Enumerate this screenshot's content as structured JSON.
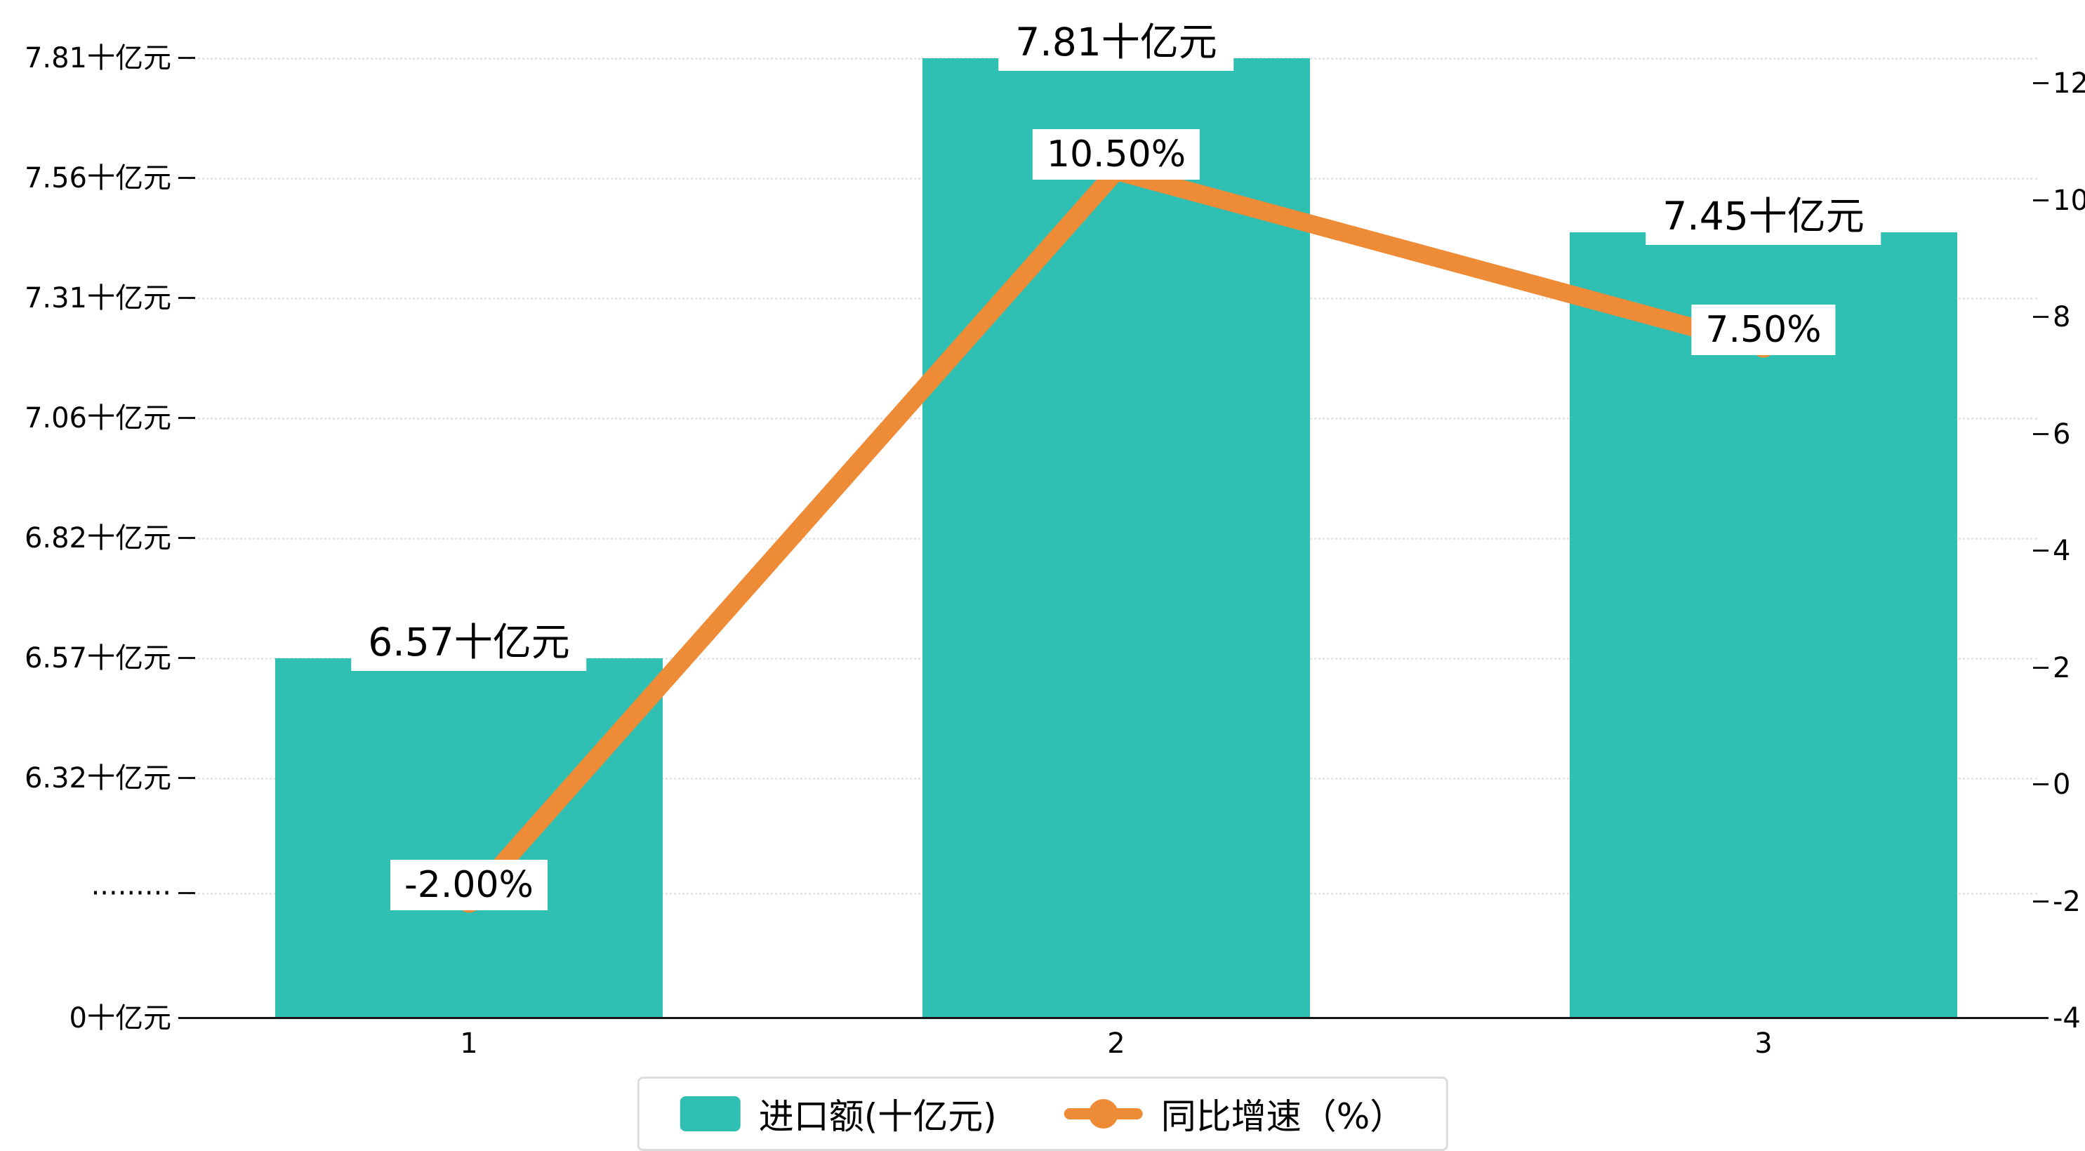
{
  "colors": {
    "bar": "#2fbfb3",
    "line": "#ee8b36",
    "grid": "#e6e6e6",
    "axis": "#161616",
    "text": "#000000",
    "label_bg": "#ffffff",
    "legend_border": "#dcdcdc"
  },
  "chart_data": {
    "type": "combo-bar-line",
    "categories": [
      "1",
      "2",
      "3"
    ],
    "series": [
      {
        "name": "进口额(十亿元)",
        "type": "bar",
        "axis": "left",
        "values": [
          6.57,
          7.81,
          7.45
        ],
        "point_labels": [
          "6.57十亿元",
          "7.81十亿元",
          "7.45十亿元"
        ]
      },
      {
        "name": "同比增速（%）",
        "type": "line",
        "axis": "right",
        "values": [
          -2.0,
          10.5,
          7.5
        ],
        "point_labels": [
          "-2.00%",
          "10.50%",
          "7.50%"
        ]
      }
    ],
    "left_axis": {
      "unit": "十亿元",
      "broken_axis": true,
      "tick_labels": [
        "7.81十亿元",
        "7.56十亿元",
        "7.31十亿元",
        "7.06十亿元",
        "6.82十亿元",
        "6.57十亿元",
        "6.32十亿元",
        "·········",
        "0十亿元"
      ],
      "tick_values": [
        7.81,
        7.56,
        7.31,
        7.06,
        6.82,
        6.57,
        6.32,
        null,
        0
      ]
    },
    "right_axis": {
      "tick_labels": [
        "12",
        "10",
        "8",
        "6",
        "4",
        "2",
        "0",
        "-2",
        "-4"
      ],
      "tick_values": [
        12,
        10,
        8,
        6,
        4,
        2,
        0,
        -2,
        -4
      ],
      "range": [
        -4,
        12
      ]
    },
    "grid": true,
    "legend_position": "bottom-center"
  }
}
